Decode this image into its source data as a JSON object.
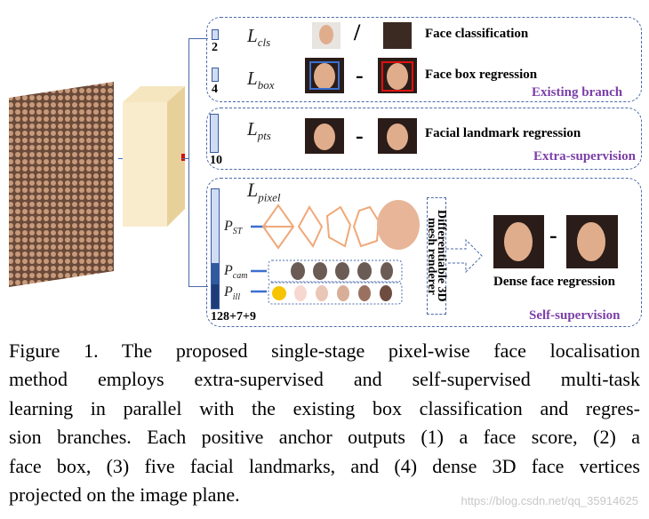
{
  "figure": {
    "branches": [
      {
        "loss": "L",
        "sub": "cls",
        "channels": "2",
        "task": "Face classification"
      },
      {
        "loss": "L",
        "sub": "box",
        "channels": "4",
        "task": "Face box regression",
        "group": "Existing branch"
      },
      {
        "loss": "L",
        "sub": "pts",
        "channels": "10",
        "task": "Facial landmark regression",
        "group": "Extra-supervision"
      },
      {
        "loss": "L",
        "sub": "pixel",
        "channels": "128+7+9",
        "task": "Dense face regression",
        "group": "Self-supervision"
      }
    ],
    "params": [
      {
        "p": "P",
        "sub": "ST"
      },
      {
        "p": "P",
        "sub": "cam"
      },
      {
        "p": "P",
        "sub": "ill"
      }
    ],
    "cls_separator": "/",
    "minus": "-",
    "renderer": "Differentiable 3D mesh renderer",
    "colors": {
      "box_pred": "#3b6fd0",
      "box_gt": "#e01010",
      "group_label": "#7b3fa8",
      "dashed_border": "#4a6aa8"
    }
  },
  "caption": [
    "Figure 1. The proposed single-stage pixel-wise face localisation",
    "method employs extra-supervised and self-supervised multi-task",
    "learning in parallel with the existing box classification and regres-",
    "sion branches. Each positive anchor outputs (1) a face score, (2) a",
    "face box, (3) five facial landmarks, and (4) dense 3D face vertices",
    "projected on the image plane."
  ],
  "watermark": "https://blog.csdn.net/qq_35914625"
}
